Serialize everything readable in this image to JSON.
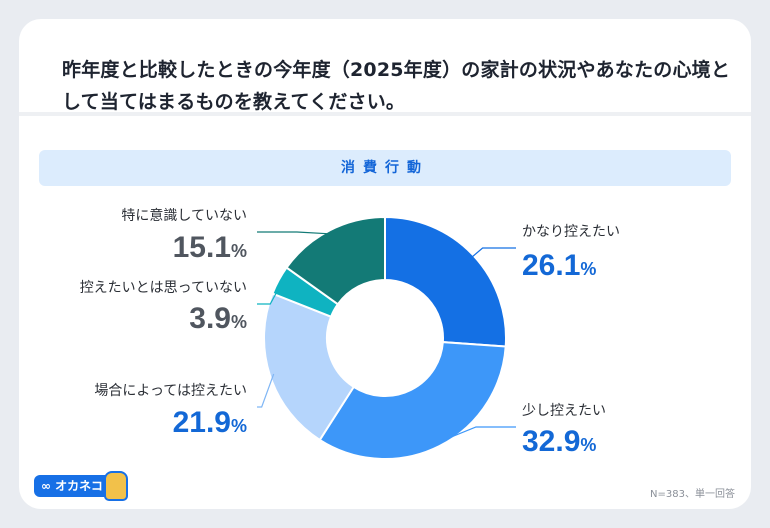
{
  "question": "昨年度と比較したときの今年度（2025年度）の家計の状況やあなたの心境として当てはまるものを教えてください。",
  "section_title": "消費行動",
  "brand": "∞ オカネコ",
  "footnote": "N=383、単一回答",
  "chart_data": {
    "type": "pie",
    "donut": true,
    "title": "消費行動",
    "slices": [
      {
        "label": "かなり控えたい",
        "value": 26.1,
        "display": "26.1",
        "color": "#1470e4"
      },
      {
        "label": "少し控えたい",
        "value": 32.9,
        "display": "32.9",
        "color": "#3d97f9"
      },
      {
        "label": "場合によっては控えたい",
        "value": 21.9,
        "display": "21.9",
        "color": "#b5d5fc"
      },
      {
        "label": "控えたいとは思っていない",
        "value": 3.9,
        "display": "3.9",
        "color": "#0fb3c1"
      },
      {
        "label": "特に意識していない",
        "value": 15.1,
        "display": "15.1",
        "color": "#137a76"
      }
    ],
    "unit": "%",
    "label_colors": [
      "#1368d6",
      "#1368d6",
      "#1368d6",
      "#50565f",
      "#50565f"
    ]
  }
}
